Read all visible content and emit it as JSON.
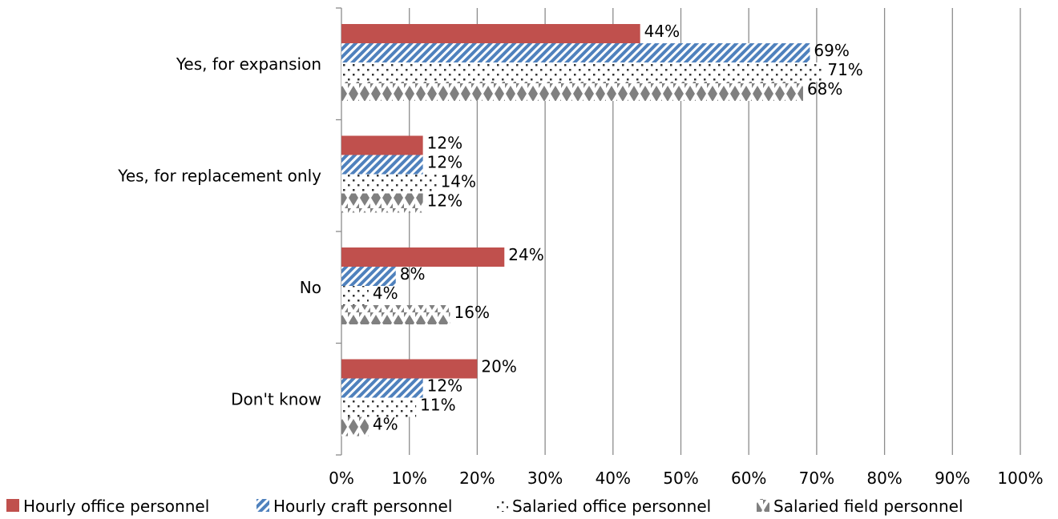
{
  "chart_data": {
    "type": "bar",
    "orientation": "horizontal",
    "categories": [
      "Yes, for expansion",
      "Yes, for replacement only",
      "No",
      "Don't know"
    ],
    "series": [
      {
        "name": "Hourly office personnel",
        "values": [
          44,
          12,
          24,
          20
        ],
        "color": "#c0504d",
        "pattern": "solid"
      },
      {
        "name": "Hourly craft personnel",
        "values": [
          69,
          12,
          8,
          12
        ],
        "color": "#4f81bd",
        "pattern": "diagonal-stripes"
      },
      {
        "name": "Salaried office personnel",
        "values": [
          71,
          14,
          4,
          11
        ],
        "color": "#555555",
        "pattern": "dots"
      },
      {
        "name": "Salaried field personnel",
        "values": [
          68,
          12,
          16,
          4
        ],
        "color": "#808080",
        "pattern": "diamonds"
      }
    ],
    "value_suffix": "%",
    "xlim": [
      0,
      100
    ],
    "x_ticks": [
      "0%",
      "10%",
      "20%",
      "30%",
      "40%",
      "50%",
      "60%",
      "70%",
      "80%",
      "90%",
      "100%"
    ],
    "grid": "vertical",
    "legend_position": "bottom"
  }
}
